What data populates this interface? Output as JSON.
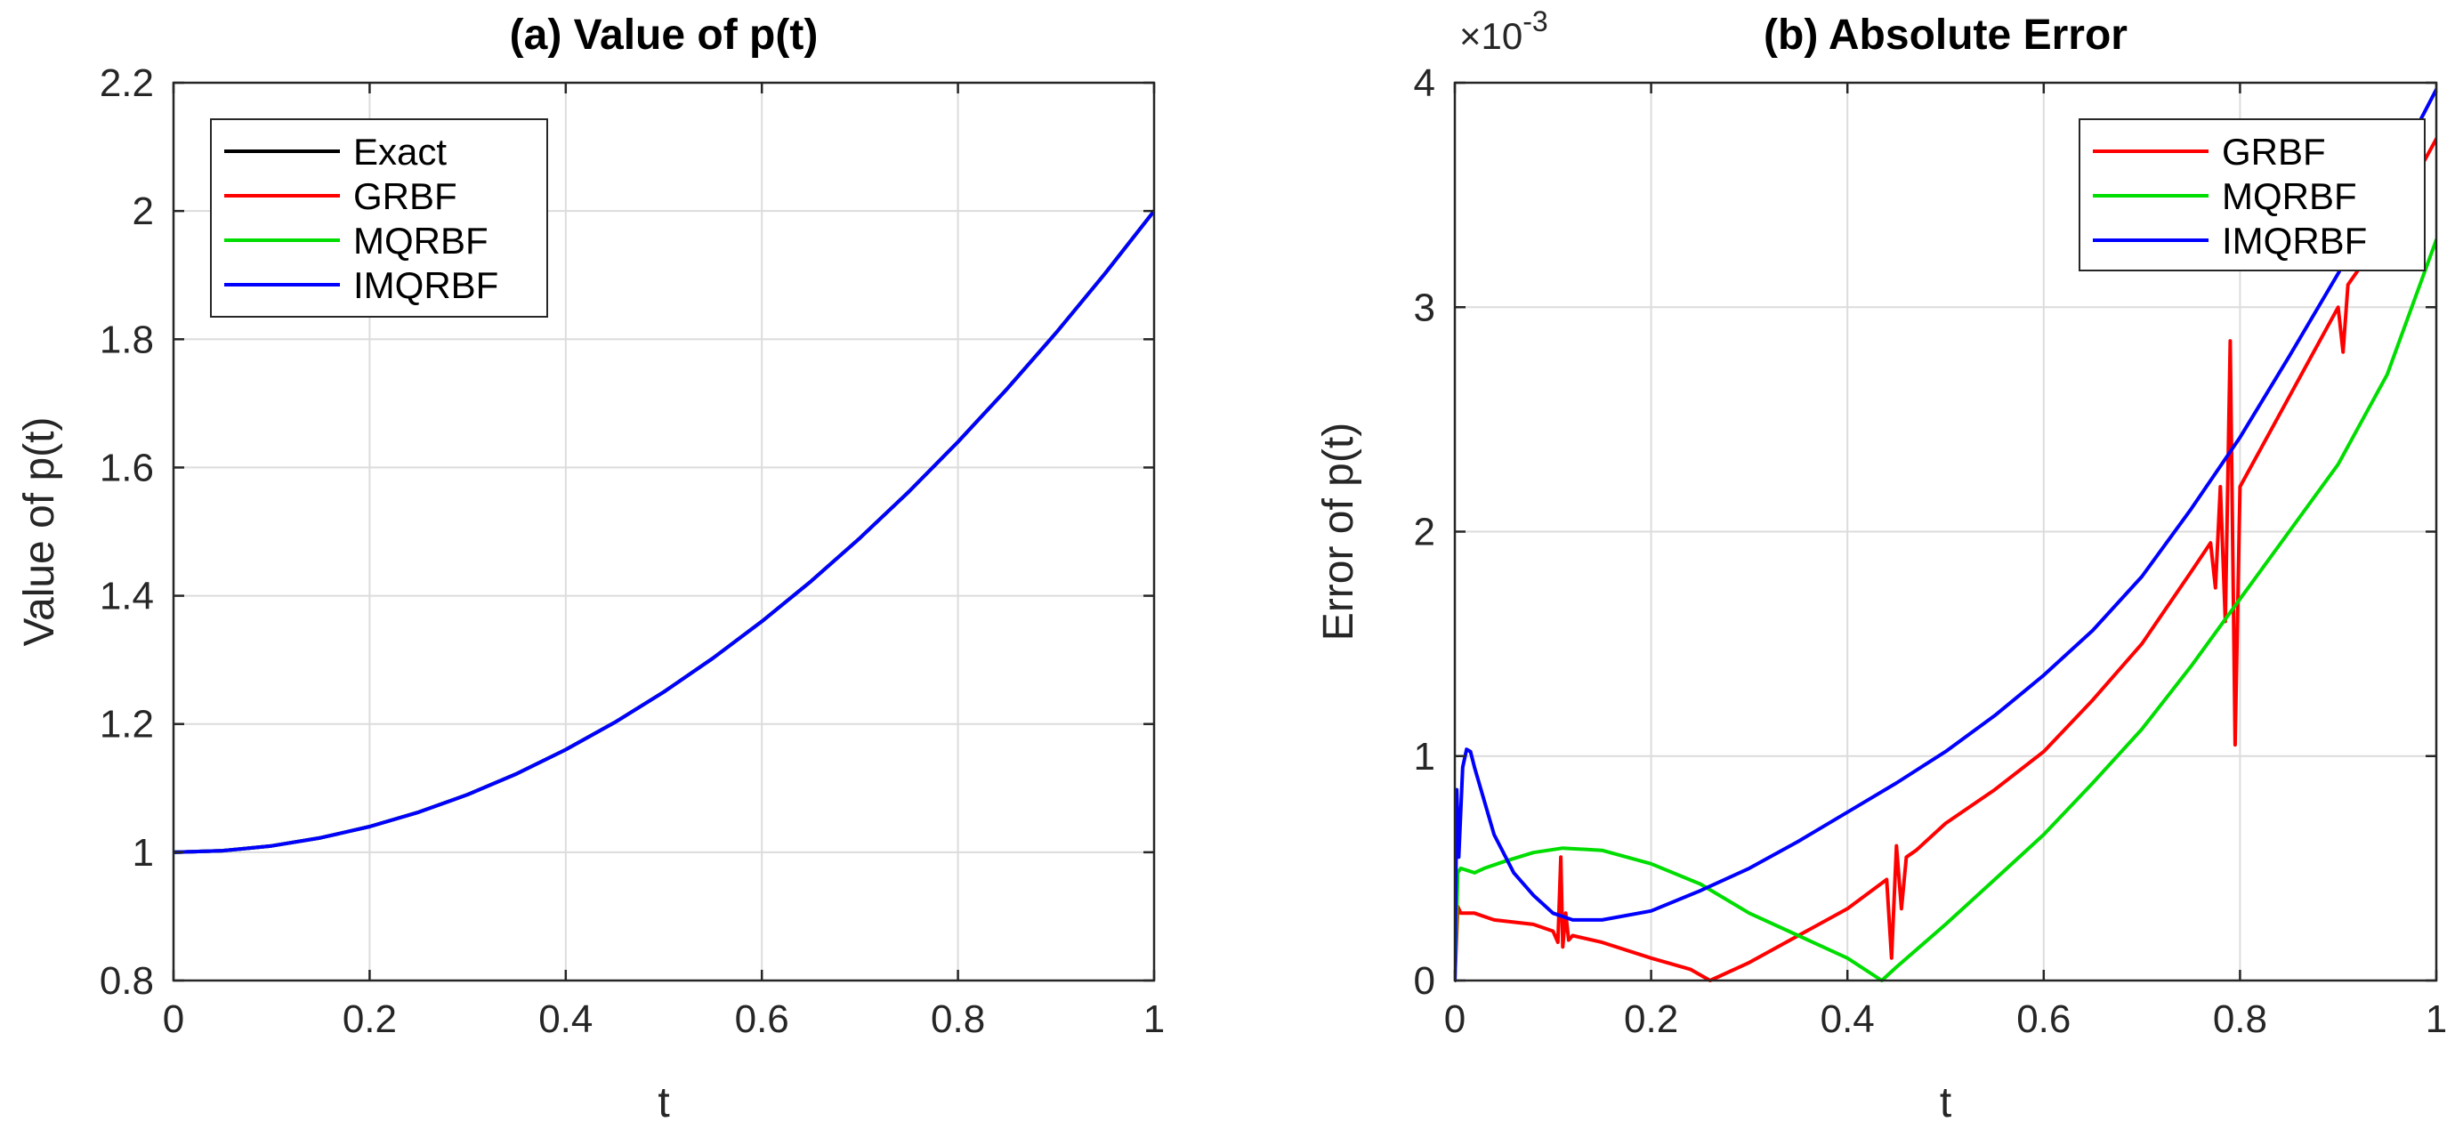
{
  "chart_data": [
    {
      "type": "line",
      "title": "(a) Value of p(t)",
      "xlabel": "t",
      "ylabel": "Value of p(t)",
      "xlim": [
        0,
        1
      ],
      "ylim": [
        0.8,
        2.2
      ],
      "xticks": [
        0,
        0.2,
        0.4,
        0.6,
        0.8,
        1
      ],
      "xtick_labels": [
        "0",
        "0.2",
        "0.4",
        "0.6",
        "0.8",
        "1"
      ],
      "yticks": [
        0.8,
        1,
        1.2,
        1.4,
        1.6,
        1.8,
        2,
        2.2
      ],
      "ytick_labels": [
        "0.8",
        "1",
        "1.2",
        "1.4",
        "1.6",
        "1.8",
        "2",
        "2.2"
      ],
      "grid": true,
      "legend_location": "top-left",
      "series": [
        {
          "name": "Exact",
          "color": "#000000",
          "x": [
            0,
            0.05,
            0.1,
            0.15,
            0.2,
            0.25,
            0.3,
            0.35,
            0.4,
            0.45,
            0.5,
            0.55,
            0.6,
            0.65,
            0.7,
            0.75,
            0.8,
            0.85,
            0.9,
            0.95,
            1
          ],
          "y": [
            1.0,
            1.0025,
            1.01,
            1.0225,
            1.04,
            1.0625,
            1.09,
            1.1225,
            1.16,
            1.2025,
            1.25,
            1.3025,
            1.36,
            1.4225,
            1.49,
            1.5625,
            1.64,
            1.7225,
            1.81,
            1.9025,
            2.0
          ]
        },
        {
          "name": "GRBF",
          "color": "#ff0000",
          "x": [
            0,
            0.05,
            0.1,
            0.15,
            0.2,
            0.25,
            0.3,
            0.35,
            0.4,
            0.45,
            0.5,
            0.55,
            0.6,
            0.65,
            0.7,
            0.75,
            0.8,
            0.85,
            0.9,
            0.95,
            1
          ],
          "y": [
            1.0,
            1.0025,
            1.01,
            1.0225,
            1.04,
            1.0625,
            1.09,
            1.1225,
            1.16,
            1.2025,
            1.25,
            1.3025,
            1.36,
            1.4225,
            1.49,
            1.5625,
            1.64,
            1.7225,
            1.81,
            1.9025,
            2.0
          ]
        },
        {
          "name": "MQRBF",
          "color": "#00dd00",
          "x": [
            0,
            0.05,
            0.1,
            0.15,
            0.2,
            0.25,
            0.3,
            0.35,
            0.4,
            0.45,
            0.5,
            0.55,
            0.6,
            0.65,
            0.7,
            0.75,
            0.8,
            0.85,
            0.9,
            0.95,
            1
          ],
          "y": [
            1.0,
            1.0025,
            1.01,
            1.0225,
            1.04,
            1.0625,
            1.09,
            1.1225,
            1.16,
            1.2025,
            1.25,
            1.3025,
            1.36,
            1.4225,
            1.49,
            1.5625,
            1.64,
            1.7225,
            1.81,
            1.9025,
            2.0
          ]
        },
        {
          "name": "IMQRBF",
          "color": "#0000ff",
          "x": [
            0,
            0.05,
            0.1,
            0.15,
            0.2,
            0.25,
            0.3,
            0.35,
            0.4,
            0.45,
            0.5,
            0.55,
            0.6,
            0.65,
            0.7,
            0.75,
            0.8,
            0.85,
            0.9,
            0.95,
            1
          ],
          "y": [
            1.0,
            1.0025,
            1.01,
            1.0225,
            1.04,
            1.0625,
            1.09,
            1.1225,
            1.16,
            1.2025,
            1.25,
            1.3025,
            1.36,
            1.4225,
            1.49,
            1.5625,
            1.64,
            1.7225,
            1.81,
            1.9025,
            2.0
          ]
        }
      ]
    },
    {
      "type": "line",
      "title": "(b) Absolute Error",
      "xlabel": "t",
      "ylabel": "Error of p(t)",
      "y_exponent_label": "×10",
      "y_exponent_power": "-3",
      "xlim": [
        0,
        1
      ],
      "ylim": [
        0,
        4
      ],
      "xticks": [
        0,
        0.2,
        0.4,
        0.6,
        0.8,
        1
      ],
      "xtick_labels": [
        "0",
        "0.2",
        "0.4",
        "0.6",
        "0.8",
        "1"
      ],
      "yticks": [
        0,
        1,
        2,
        3,
        4
      ],
      "ytick_labels": [
        "0",
        "1",
        "2",
        "3",
        "4"
      ],
      "grid": true,
      "legend_location": "top-right",
      "series": [
        {
          "name": "GRBF",
          "color": "#ff0000",
          "x": [
            0,
            0.003,
            0.006,
            0.02,
            0.04,
            0.06,
            0.08,
            0.1,
            0.105,
            0.108,
            0.11,
            0.113,
            0.116,
            0.12,
            0.15,
            0.2,
            0.24,
            0.26,
            0.27,
            0.3,
            0.35,
            0.4,
            0.44,
            0.445,
            0.45,
            0.455,
            0.46,
            0.47,
            0.5,
            0.55,
            0.6,
            0.65,
            0.7,
            0.75,
            0.77,
            0.775,
            0.78,
            0.785,
            0.79,
            0.795,
            0.8,
            0.85,
            0.9,
            0.905,
            0.91,
            0.95,
            1
          ],
          "y": [
            0,
            0.33,
            0.3,
            0.3,
            0.27,
            0.26,
            0.25,
            0.22,
            0.17,
            0.55,
            0.15,
            0.3,
            0.18,
            0.2,
            0.17,
            0.1,
            0.05,
            0.0,
            0.02,
            0.08,
            0.2,
            0.32,
            0.45,
            0.1,
            0.6,
            0.32,
            0.55,
            0.58,
            0.7,
            0.85,
            1.02,
            1.25,
            1.5,
            1.82,
            1.95,
            1.75,
            2.2,
            1.6,
            2.85,
            1.05,
            2.2,
            2.6,
            3.0,
            2.8,
            3.1,
            3.35,
            3.75
          ]
        },
        {
          "name": "MQRBF",
          "color": "#00dd00",
          "x": [
            0,
            0.003,
            0.006,
            0.02,
            0.03,
            0.05,
            0.08,
            0.11,
            0.15,
            0.2,
            0.25,
            0.3,
            0.35,
            0.4,
            0.435,
            0.45,
            0.5,
            0.55,
            0.6,
            0.65,
            0.7,
            0.75,
            0.8,
            0.85,
            0.9,
            0.95,
            1
          ],
          "y": [
            0,
            0.48,
            0.5,
            0.48,
            0.5,
            0.53,
            0.57,
            0.59,
            0.58,
            0.52,
            0.43,
            0.3,
            0.2,
            0.1,
            0.0,
            0.06,
            0.25,
            0.45,
            0.65,
            0.88,
            1.12,
            1.4,
            1.7,
            2.0,
            2.3,
            2.7,
            3.3
          ]
        },
        {
          "name": "IMQRBF",
          "color": "#0000ff",
          "x": [
            0,
            0.002,
            0.004,
            0.008,
            0.012,
            0.016,
            0.02,
            0.03,
            0.04,
            0.06,
            0.08,
            0.1,
            0.12,
            0.15,
            0.2,
            0.25,
            0.3,
            0.35,
            0.4,
            0.45,
            0.5,
            0.55,
            0.6,
            0.65,
            0.7,
            0.75,
            0.8,
            0.85,
            0.9,
            0.95,
            1
          ],
          "y": [
            0,
            0.85,
            0.55,
            0.95,
            1.03,
            1.02,
            0.95,
            0.8,
            0.65,
            0.48,
            0.38,
            0.3,
            0.27,
            0.27,
            0.31,
            0.4,
            0.5,
            0.62,
            0.75,
            0.88,
            1.02,
            1.18,
            1.36,
            1.56,
            1.8,
            2.1,
            2.42,
            2.78,
            3.15,
            3.55,
            3.97
          ]
        }
      ]
    }
  ]
}
